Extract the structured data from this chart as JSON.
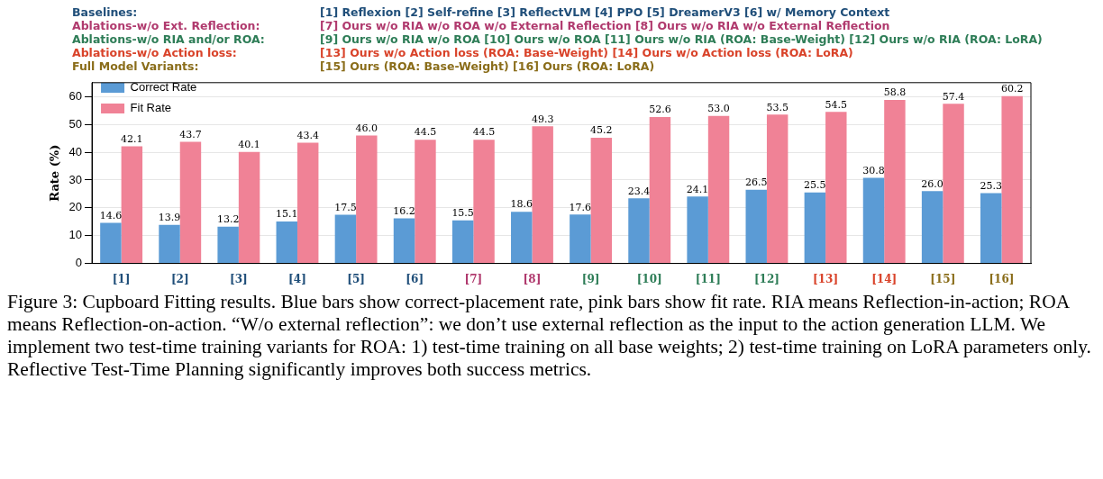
{
  "chart_data": {
    "type": "bar",
    "ylabel": "Rate (%)",
    "categories": [
      "[1]",
      "[2]",
      "[3]",
      "[4]",
      "[5]",
      "[6]",
      "[7]",
      "[8]",
      "[9]",
      "[10]",
      "[11]",
      "[12]",
      "[13]",
      "[14]",
      "[15]",
      "[16]"
    ],
    "series": [
      {
        "name": "Correct Rate",
        "color": "#5b9bd5",
        "values": [
          14.6,
          13.9,
          13.2,
          15.1,
          17.5,
          16.2,
          15.5,
          18.6,
          17.6,
          23.4,
          24.1,
          26.5,
          25.5,
          30.8,
          26.0,
          25.3
        ],
        "value_labels": [
          "14.6",
          "13.9",
          "13.2",
          "15.1",
          "17.5",
          "16.2",
          "15.5",
          "18.6",
          "17.6",
          "23.4",
          "24.1",
          "26.5",
          "25.5",
          "30.8",
          "26.0",
          "25.3"
        ]
      },
      {
        "name": "Fit Rate",
        "color": "#f08296",
        "values": [
          42.1,
          43.7,
          40.1,
          43.4,
          46.0,
          44.5,
          44.5,
          49.3,
          45.2,
          52.6,
          53.0,
          53.5,
          54.5,
          58.8,
          57.4,
          60.2
        ],
        "value_labels": [
          "42.1",
          "43.7",
          "40.1",
          "43.4",
          "46.0",
          "44.5",
          "44.5",
          "49.3",
          "45.2",
          "52.6",
          "53.0",
          "53.5",
          "54.5",
          "58.8",
          "57.4",
          "60.2"
        ]
      }
    ],
    "ylim": [
      0,
      65
    ],
    "yticks": [
      0,
      10,
      20,
      30,
      40,
      50,
      60
    ],
    "grid": "y",
    "legend": "top left",
    "annotations": [
      "Baselines: [1] Reflexion  [2] Self-refine  [3] ReflectVLM  [4] PPO  [5] DreamerV3  [6] w/ Memory Context",
      "Ablations-w/o Ext. Reflection: [7] Ours w/o RIA w/o ROA w/o External Reflection  [8] Ours w/o RIA w/o External Reflection",
      "Ablations-w/o RIA and/or ROA: [9] Ours w/o RIA w/o ROA  [10] Ours w/o ROA  [11] Ours w/o RIA (ROA: Base-Weight)  [12] Ours w/o RIA (ROA: LoRA)",
      "Ablations-w/o Action loss: [13] Ours w/o Action loss (ROA: Base-Weight)  [14] Ours w/o Action loss (ROA: LoRA)",
      "Full Model Variants: [15] Ours (ROA: Base-Weight)  [16] Ours (ROA: LoRA)",
      "Figure 3: Cupboard Fitting results. Blue bars show correct-placement rate, pink bars show fit rate. RIA means Reflection-in-action; ROA means Reflection-on-action. “W/o external reflection”: we don’t use external reflection as the input to the action generation LLM. We implement two test-time training variants for ROA: 1) test-time training on all base weights; 2) test-time training on LoRA parameters only. Reflective Test-Time Planning significantly improves both success metrics."
    ]
  }
}
